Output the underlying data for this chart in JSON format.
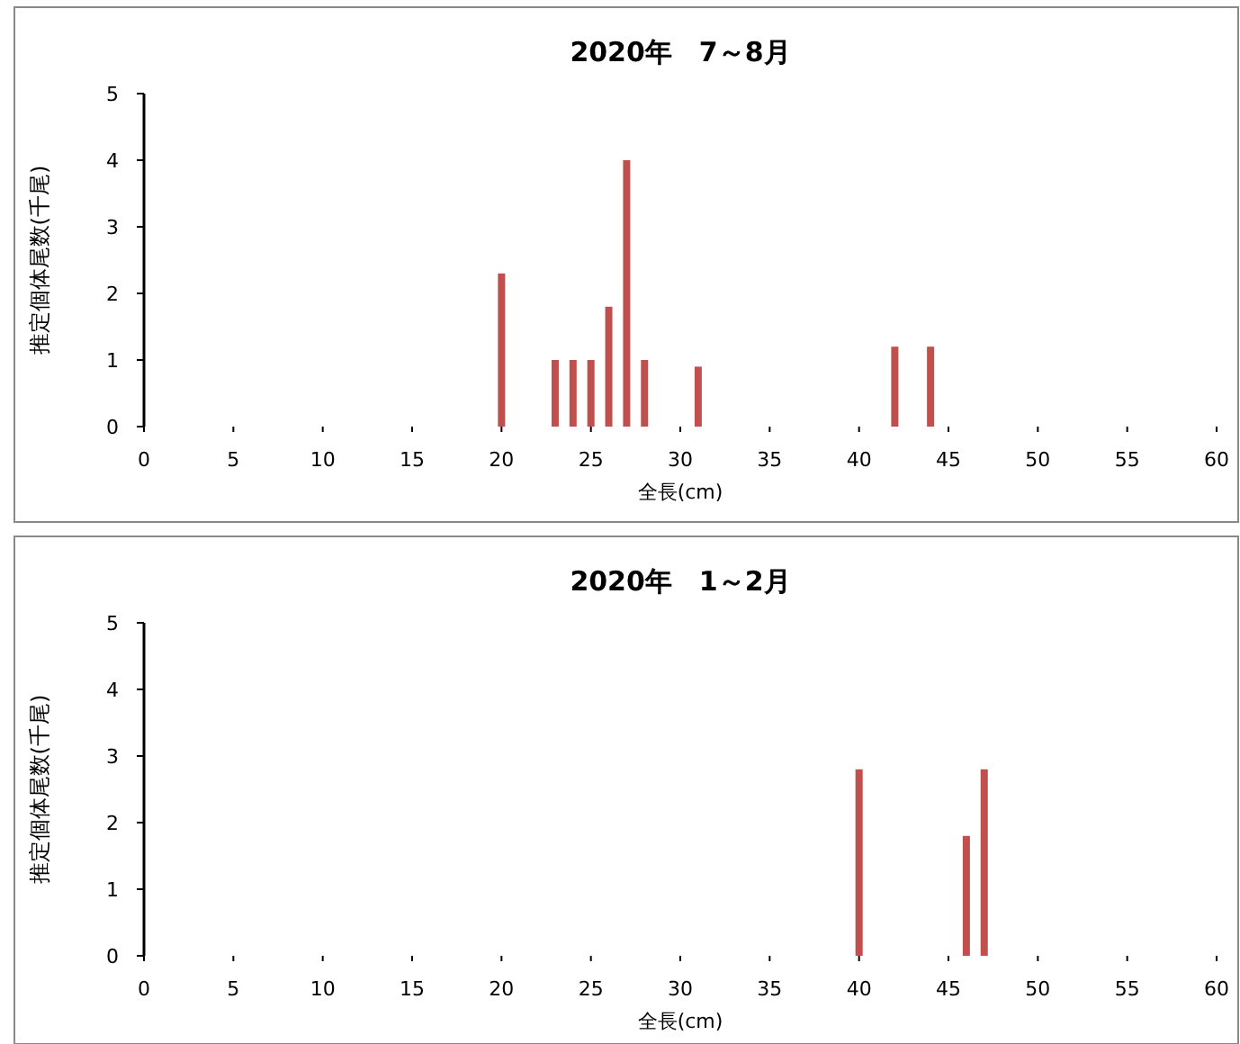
{
  "chart_data": [
    {
      "type": "bar",
      "title": "2020年　7～8月",
      "xlabel": "全長(cm)",
      "ylabel": "推定個体尾数(千尾)",
      "x": [
        20,
        23,
        24,
        25,
        26,
        27,
        28,
        31,
        42,
        44
      ],
      "values": [
        2.3,
        1.0,
        1.0,
        1.0,
        1.8,
        4.0,
        1.0,
        0.9,
        1.2,
        1.2
      ],
      "color": "#c0504d",
      "xlim": [
        0,
        60
      ],
      "xticks": [
        0,
        5,
        10,
        15,
        20,
        25,
        30,
        35,
        40,
        45,
        50,
        55,
        60
      ],
      "ylim": [
        0,
        5
      ],
      "yticks": [
        0,
        1,
        2,
        3,
        4,
        5
      ]
    },
    {
      "type": "bar",
      "title": "2020年　1～2月",
      "xlabel": "全長(cm)",
      "ylabel": "推定個体尾数(千尾)",
      "x": [
        40,
        46,
        47
      ],
      "values": [
        2.8,
        1.8,
        2.8
      ],
      "color": "#c0504d",
      "xlim": [
        0,
        60
      ],
      "xticks": [
        0,
        5,
        10,
        15,
        20,
        25,
        30,
        35,
        40,
        45,
        50,
        55,
        60
      ],
      "ylim": [
        0,
        5
      ],
      "yticks": [
        0,
        1,
        2,
        3,
        4,
        5
      ]
    }
  ]
}
